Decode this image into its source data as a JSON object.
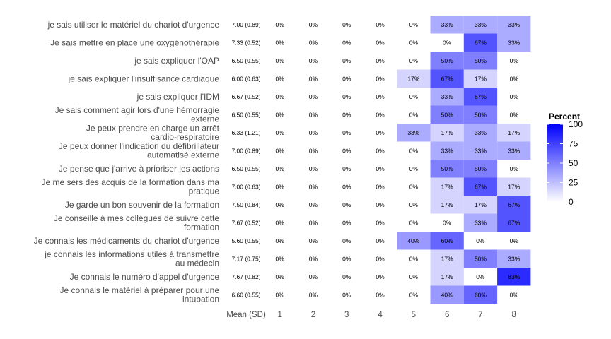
{
  "chart_data": {
    "type": "heatmap",
    "x_categories": [
      "1",
      "2",
      "3",
      "4",
      "5",
      "6",
      "7",
      "8"
    ],
    "mean_header": "Mean (SD)",
    "rows": [
      {
        "label": [
          "je sais utiliser le matériel du chariot d'urgence"
        ],
        "mean_sd": "7.00 (0.89)",
        "values": [
          0,
          0,
          0,
          0,
          0,
          33,
          33,
          33
        ]
      },
      {
        "label": [
          "Je sais mettre en place une oxygénothérapie"
        ],
        "mean_sd": "7.33 (0.52)",
        "values": [
          0,
          0,
          0,
          0,
          0,
          0,
          67,
          33
        ]
      },
      {
        "label": [
          "je sais expliquer l'OAP"
        ],
        "mean_sd": "6.50 (0.55)",
        "values": [
          0,
          0,
          0,
          0,
          0,
          50,
          50,
          0
        ]
      },
      {
        "label": [
          "je sais expliquer l'insuffisance cardiaque"
        ],
        "mean_sd": "6.00 (0.63)",
        "values": [
          0,
          0,
          0,
          0,
          17,
          67,
          17,
          0
        ]
      },
      {
        "label": [
          "je sais expliquer l'IDM"
        ],
        "mean_sd": "6.67 (0.52)",
        "values": [
          0,
          0,
          0,
          0,
          0,
          33,
          67,
          0
        ]
      },
      {
        "label": [
          "Je sais comment agir lors d'une hémorragie",
          "externe"
        ],
        "mean_sd": "6.50 (0.55)",
        "values": [
          0,
          0,
          0,
          0,
          0,
          50,
          50,
          0
        ]
      },
      {
        "label": [
          "Je peux prendre en charge un arrêt",
          "cardio-respiratoire"
        ],
        "mean_sd": "6.33 (1.21)",
        "values": [
          0,
          0,
          0,
          0,
          33,
          17,
          33,
          17
        ]
      },
      {
        "label": [
          "Je peux donner l'indication du défibrillateur",
          "automatisé externe"
        ],
        "mean_sd": "7.00 (0.89)",
        "values": [
          0,
          0,
          0,
          0,
          0,
          33,
          33,
          33
        ]
      },
      {
        "label": [
          "Je pense que j'arrive à prioriser les actions"
        ],
        "mean_sd": "6.50 (0.55)",
        "values": [
          0,
          0,
          0,
          0,
          0,
          50,
          50,
          0
        ]
      },
      {
        "label": [
          "Je me sers des acquis de la formation dans ma",
          "pratique"
        ],
        "mean_sd": "7.00 (0.63)",
        "values": [
          0,
          0,
          0,
          0,
          0,
          17,
          67,
          17
        ]
      },
      {
        "label": [
          "Je garde un bon souvenir de la formation"
        ],
        "mean_sd": "7.50 (0.84)",
        "values": [
          0,
          0,
          0,
          0,
          0,
          17,
          17,
          67
        ]
      },
      {
        "label": [
          "Je conseille à mes collègues de suivre cette",
          "formation"
        ],
        "mean_sd": "7.67 (0.52)",
        "values": [
          0,
          0,
          0,
          0,
          0,
          0,
          33,
          67
        ]
      },
      {
        "label": [
          "Je connais les médicaments du chariot d'urgence"
        ],
        "mean_sd": "5.60 (0.55)",
        "values": [
          0,
          0,
          0,
          0,
          40,
          60,
          0,
          0
        ]
      },
      {
        "label": [
          "je connais les informations utiles à transmettre",
          "au médecin"
        ],
        "mean_sd": "7.17 (0.75)",
        "values": [
          0,
          0,
          0,
          0,
          0,
          17,
          50,
          33
        ]
      },
      {
        "label": [
          "Je connais le numéro d'appel d'urgence"
        ],
        "mean_sd": "7.67 (0.82)",
        "values": [
          0,
          0,
          0,
          0,
          0,
          17,
          0,
          83
        ]
      },
      {
        "label": [
          "Je connais le matériel à préparer pour une",
          "intubation"
        ],
        "mean_sd": "6.60 (0.55)",
        "values": [
          0,
          0,
          0,
          0,
          0,
          40,
          60,
          0
        ]
      }
    ],
    "legend": {
      "title": "Percent",
      "ticks": [
        0,
        25,
        50,
        75,
        100
      ],
      "range": [
        0,
        100
      ],
      "position": "right",
      "low_color": "#ffffff",
      "high_color": "#0000ff"
    },
    "value_suffix": "%",
    "grid": false
  }
}
